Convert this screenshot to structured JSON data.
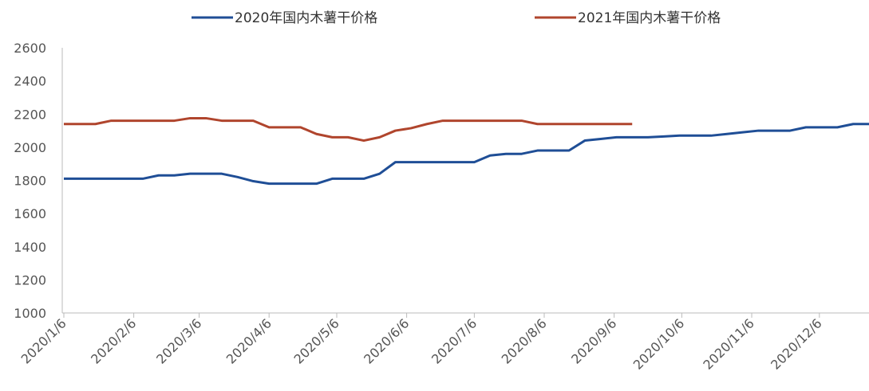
{
  "chart_data": {
    "type": "line",
    "x": [
      "2020/1/6",
      "2020/1/13",
      "2020/1/20",
      "2020/1/27",
      "2020/2/3",
      "2020/2/10",
      "2020/2/17",
      "2020/2/24",
      "2020/3/2",
      "2020/3/9",
      "2020/3/16",
      "2020/3/23",
      "2020/3/30",
      "2020/4/6",
      "2020/4/13",
      "2020/4/20",
      "2020/4/27",
      "2020/5/4",
      "2020/5/11",
      "2020/5/18",
      "2020/5/25",
      "2020/6/1",
      "2020/6/8",
      "2020/6/15",
      "2020/6/22",
      "2020/6/29",
      "2020/7/6",
      "2020/7/13",
      "2020/7/20",
      "2020/7/27",
      "2020/8/3",
      "2020/8/10",
      "2020/8/17",
      "2020/8/24",
      "2020/8/31",
      "2020/9/7",
      "2020/9/14",
      "2020/9/21",
      "2020/9/28",
      "2020/10/5",
      "2020/10/12",
      "2020/10/19",
      "2020/10/26",
      "2020/11/2",
      "2020/11/9",
      "2020/11/16",
      "2020/11/23",
      "2020/11/30",
      "2020/12/7",
      "2020/12/14",
      "2020/12/21",
      "2020/12/28"
    ],
    "series": [
      {
        "name": "2020年国内木薯干价格",
        "color": "#1f4e96",
        "values": [
          1810,
          1810,
          1810,
          1810,
          1810,
          1810,
          1830,
          1830,
          1840,
          1840,
          1840,
          1820,
          1795,
          1780,
          1780,
          1780,
          1780,
          1810,
          1810,
          1810,
          1840,
          1910,
          1910,
          1910,
          1910,
          1910,
          1910,
          1950,
          1960,
          1960,
          1980,
          1980,
          1980,
          2040,
          2050,
          2060,
          2060,
          2060,
          2065,
          2070,
          2070,
          2070,
          2080,
          2090,
          2100,
          2100,
          2100,
          2120,
          2120,
          2120,
          2140,
          2140
        ]
      },
      {
        "name": "2021年国内木薯干价格",
        "color": "#b0452d",
        "values": [
          2140,
          2140,
          2140,
          2160,
          2160,
          2160,
          2160,
          2160,
          2175,
          2175,
          2160,
          2160,
          2160,
          2120,
          2120,
          2120,
          2080,
          2060,
          2060,
          2040,
          2060,
          2100,
          2115,
          2140,
          2160,
          2160,
          2160,
          2160,
          2160,
          2160,
          2140,
          2140,
          2140,
          2140,
          2140,
          2140,
          2140,
          null,
          null,
          null,
          null,
          null,
          null,
          null,
          null,
          null,
          null,
          null,
          null,
          null,
          null,
          null
        ]
      }
    ],
    "xlim": [
      "2020/1/6",
      "2020/12/28"
    ],
    "xticks": [
      "2020/1/6",
      "2020/2/6",
      "2020/3/6",
      "2020/4/6",
      "2020/5/6",
      "2020/6/6",
      "2020/7/6",
      "2020/8/6",
      "2020/9/6",
      "2020/10/6",
      "2020/11/6",
      "2020/12/6"
    ],
    "ylim": [
      1000,
      2600
    ],
    "yticks": [
      1000,
      1200,
      1400,
      1600,
      1800,
      2000,
      2200,
      2400,
      2600
    ],
    "legend": "top"
  }
}
